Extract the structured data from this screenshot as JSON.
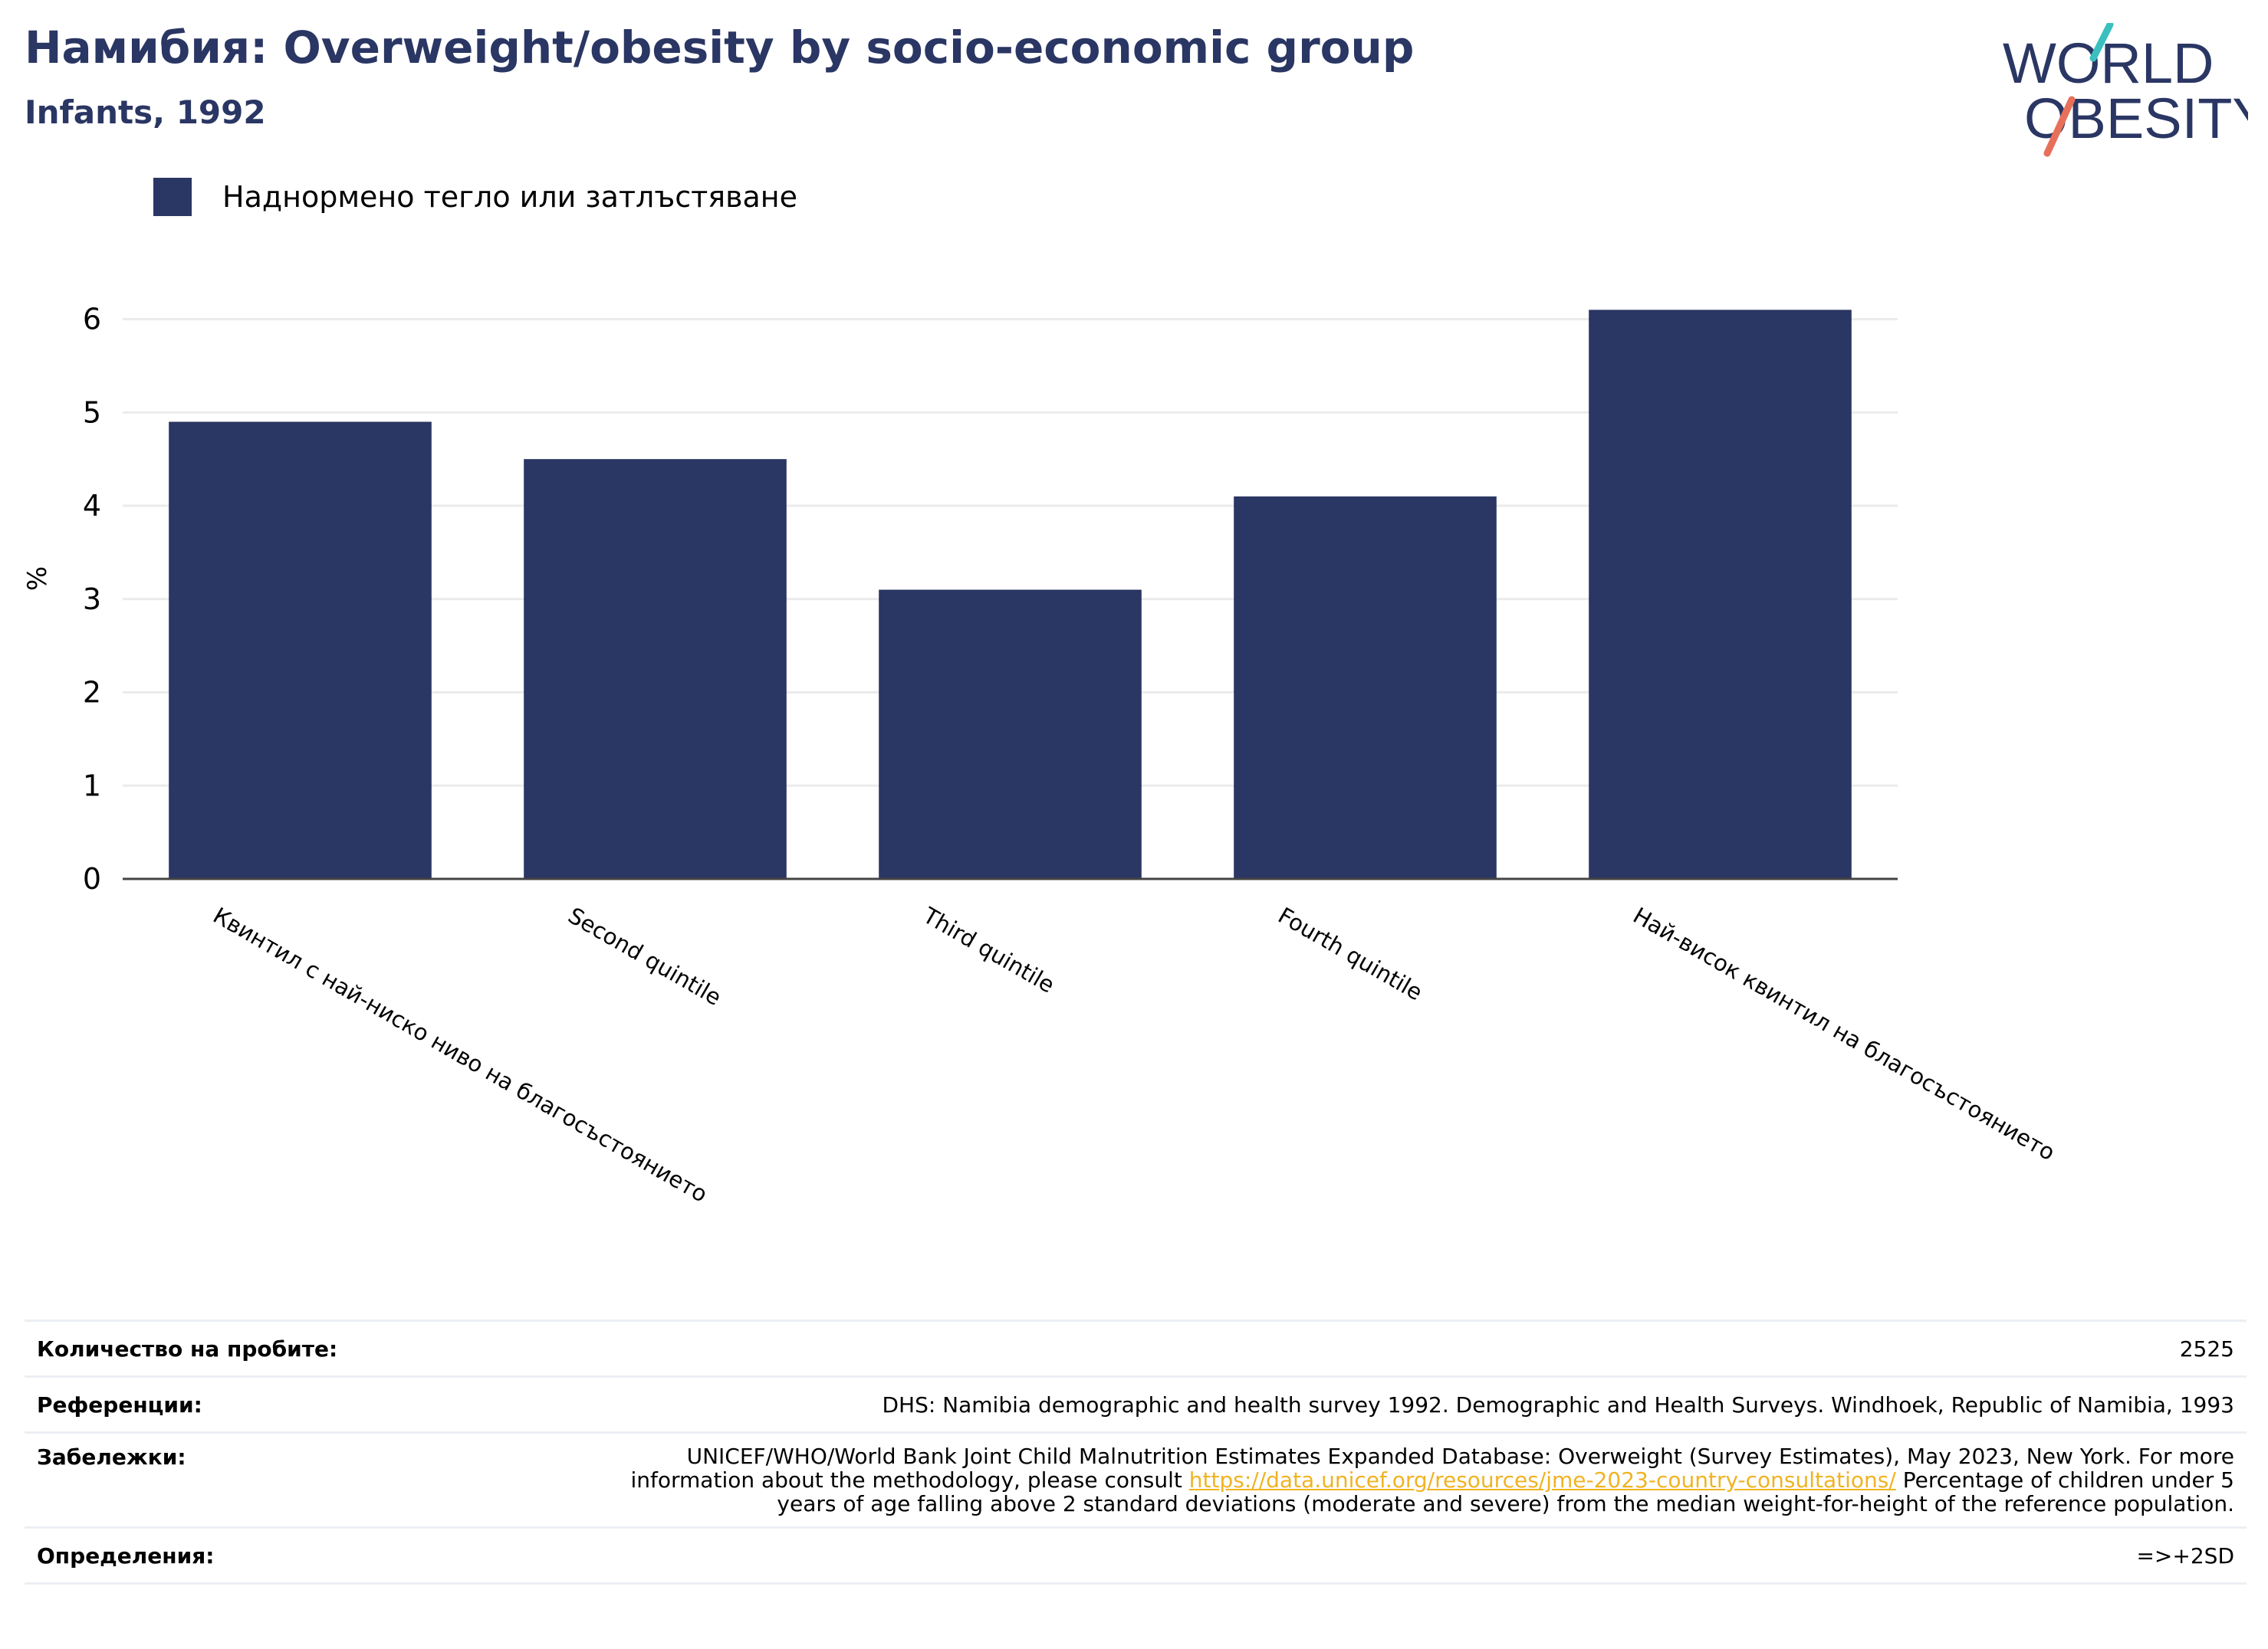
{
  "header": {
    "title": "Намибия: Overweight/obesity by socio-economic group",
    "subtitle": "Infants, 1992"
  },
  "logo": {
    "line1": "WORLD",
    "line2": "OBESITY"
  },
  "legend": {
    "label": "Наднормено тегло или затлъстяване"
  },
  "chart_data": {
    "type": "bar",
    "categories": [
      "Квинтил с най-ниско ниво на благосъстоянието",
      "Second quintile",
      "Third quintile",
      "Fourth quintile",
      "Най-висок квинтил на благосъстоянието"
    ],
    "series": [
      {
        "name": "Наднормено тегло или затлъстяване",
        "values": [
          4.9,
          4.5,
          3.1,
          4.1,
          6.1
        ]
      }
    ],
    "ylabel": "%",
    "yticks": [
      0,
      1,
      2,
      3,
      4,
      5,
      6
    ],
    "ylim": [
      0,
      6.3
    ],
    "grid": true,
    "legend_position": "top-left",
    "bar_color": "#2a3663"
  },
  "footer": {
    "sample_label": "Количество на пробите:",
    "sample_value": "2525",
    "references_label": "Референции:",
    "references_value": "DHS: Namibia demographic and health survey 1992. Demographic and Health Surveys. Windhoek, Republic of Namibia, 1993",
    "notes_label": "Забележки:",
    "notes_before": "UNICEF/WHO/World Bank Joint Child Malnutrition Estimates Expanded Database: Overweight (Survey Estimates), May 2023, New York. For more information about the methodology, please consult ",
    "notes_link": "https://data.unicef.org/resources/jme-2023-country-consultations/",
    "notes_after": " Percentage of children under 5 years of age falling above 2 standard deviations (moderate and severe) from the median weight-for-height of the reference population.",
    "definitions_label": "Определения:",
    "definitions_value": "=>+2SD"
  },
  "colors": {
    "primary": "#2a3663",
    "logo_teal": "#3bbfbf",
    "logo_coral": "#e8705a",
    "link": "#f0b323"
  }
}
